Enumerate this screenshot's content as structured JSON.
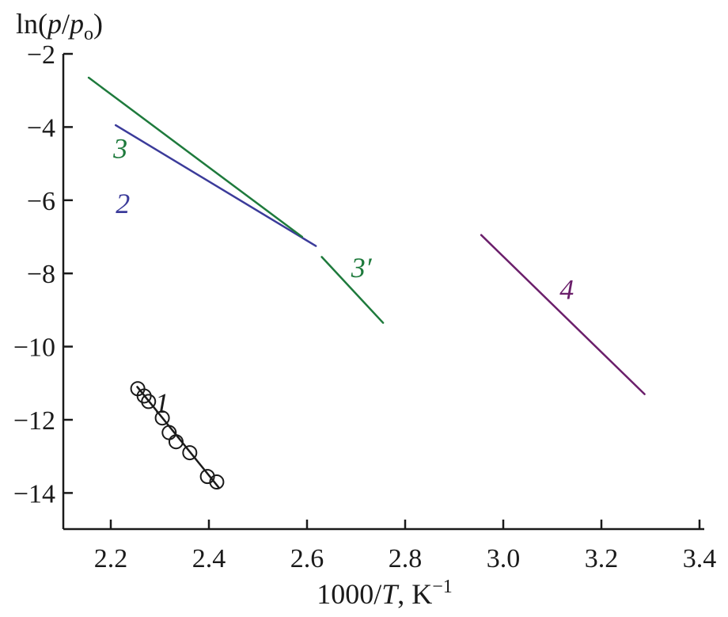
{
  "chart_data": {
    "type": "line",
    "ylabel_parts": {
      "pre": "ln(",
      "p1": "p",
      "slash": "/",
      "p2": "p",
      "sub": "o",
      "post": ")"
    },
    "xlabel_parts": {
      "pre": "1000/",
      "var": "T",
      "unit": ", K",
      "sup": "−1"
    },
    "xlim": [
      2.1,
      3.4
    ],
    "ylim": [
      -15,
      -2
    ],
    "xticks": [
      2.2,
      2.4,
      2.6,
      2.8,
      3.0,
      3.2,
      3.4
    ],
    "xtick_labels": [
      "2.2",
      "2.4",
      "2.6",
      "2.8",
      "3.0",
      "3.2",
      "3.4"
    ],
    "yticks": [
      -2,
      -4,
      -6,
      -8,
      -10,
      -12,
      -14
    ],
    "ytick_labels": [
      "−2",
      "−4",
      "−6",
      "−8",
      "−10",
      "−12",
      "−14"
    ],
    "series": [
      {
        "label": "1",
        "color": "#1a1a1a",
        "line": [
          [
            2.254,
            -11.1
          ],
          [
            2.42,
            -13.85
          ]
        ],
        "points": [
          [
            2.255,
            -11.15
          ],
          [
            2.268,
            -11.35
          ],
          [
            2.277,
            -11.5
          ],
          [
            2.305,
            -11.95
          ],
          [
            2.319,
            -12.35
          ],
          [
            2.333,
            -12.6
          ],
          [
            2.361,
            -12.9
          ],
          [
            2.397,
            -13.55
          ],
          [
            2.416,
            -13.7
          ]
        ],
        "label_at": [
          2.29,
          -11.8
        ]
      },
      {
        "label": "2",
        "color": "#3b3b9a",
        "line": [
          [
            2.21,
            -3.95
          ],
          [
            2.618,
            -7.25
          ]
        ],
        "label_at": [
          2.21,
          -6.35
        ]
      },
      {
        "label": "3",
        "color": "#1e7a3c",
        "line": [
          [
            2.155,
            -2.65
          ],
          [
            2.59,
            -7.0
          ]
        ],
        "label_at": [
          2.205,
          -4.85
        ]
      },
      {
        "label": "3′",
        "color": "#1e7a3c",
        "line": [
          [
            2.63,
            -7.55
          ],
          [
            2.755,
            -9.35
          ]
        ],
        "label_at": [
          2.69,
          -8.1
        ]
      },
      {
        "label": "4",
        "color": "#6b1f6b",
        "line": [
          [
            2.955,
            -6.95
          ],
          [
            3.288,
            -11.3
          ]
        ],
        "label_at": [
          3.115,
          -8.7
        ]
      }
    ]
  }
}
